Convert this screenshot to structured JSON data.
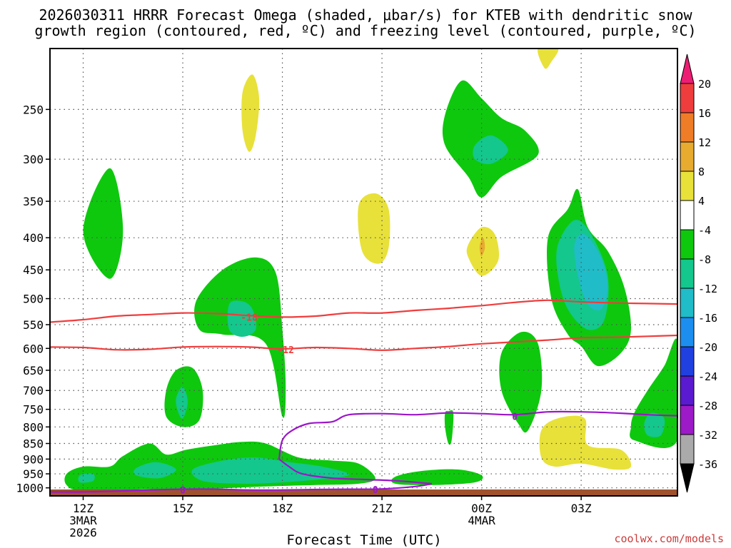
{
  "chart_data": {
    "type": "heatmap",
    "title_lines": [
      "2026030311 HRRR Forecast Omega (shaded, μbar/s) for KTEB with dendritic snow",
      "growth region (contoured, red, ºC) and freezing level (contoured, purple, ºC)"
    ],
    "xlabel": "Forecast Time (UTC)",
    "credit": "coolwx.com/models",
    "x_ticks": [
      {
        "hour": 12,
        "lines": [
          "12Z",
          "3MAR",
          "2026"
        ]
      },
      {
        "hour": 15,
        "lines": [
          "15Z"
        ]
      },
      {
        "hour": 18,
        "lines": [
          "18Z"
        ]
      },
      {
        "hour": 21,
        "lines": [
          "21Z"
        ]
      },
      {
        "hour": 24,
        "lines": [
          "00Z",
          "4MAR"
        ]
      },
      {
        "hour": 27,
        "lines": [
          "03Z"
        ]
      }
    ],
    "x_range_hours": [
      11,
      29.9
    ],
    "y_levels": [
      "250",
      "300",
      "350",
      "400",
      "450",
      "500",
      "550",
      "600",
      "650",
      "700",
      "750",
      "800",
      "850",
      "900",
      "950",
      "1000"
    ],
    "y_range_mb": [
      200,
      1030
    ],
    "y_scale": "log-pressure",
    "grid": true,
    "colorbar": {
      "labels": [
        "20",
        "16",
        "12",
        "8",
        "4",
        "-4",
        "-8",
        "-12",
        "-16",
        "-20",
        "-24",
        "-28",
        "-32",
        "-36"
      ],
      "colors": [
        "#ee1d74",
        "#ef3d3d",
        "#ef7d28",
        "#e7ab30",
        "#e8e13a",
        "#ffffff",
        "#0ec80e",
        "#14c78c",
        "#20bcc8",
        "#1c8ef0",
        "#2040e0",
        "#5a1ad0",
        "#9c1ac8",
        "#aaaaaa",
        "#000000"
      ]
    },
    "omega_regions": [
      {
        "level": "-4",
        "points": [
          [
            12.0,
            390
          ],
          [
            12.8,
            310
          ],
          [
            13.2,
            390
          ],
          [
            12.8,
            465
          ]
        ]
      },
      {
        "level": "-4",
        "points": [
          [
            15.4,
            505
          ],
          [
            16.2,
            450
          ],
          [
            17.2,
            430
          ],
          [
            17.8,
            455
          ],
          [
            18.0,
            560
          ],
          [
            18.1,
            690
          ],
          [
            18.0,
            770
          ],
          [
            17.5,
            590
          ],
          [
            16.2,
            570
          ],
          [
            15.5,
            560
          ]
        ]
      },
      {
        "level": "-4",
        "points": [
          [
            14.5,
            700
          ],
          [
            14.8,
            650
          ],
          [
            15.3,
            645
          ],
          [
            15.6,
            700
          ],
          [
            15.5,
            780
          ],
          [
            15.0,
            800
          ],
          [
            14.5,
            770
          ]
        ]
      },
      {
        "level": "-4",
        "points": [
          [
            11.5,
            950
          ],
          [
            12.0,
            925
          ],
          [
            12.8,
            925
          ],
          [
            13.2,
            890
          ],
          [
            14.0,
            850
          ],
          [
            14.5,
            885
          ],
          [
            15.1,
            870
          ],
          [
            16.0,
            855
          ],
          [
            16.8,
            845
          ],
          [
            17.5,
            850
          ],
          [
            18.5,
            895
          ],
          [
            19.5,
            905
          ],
          [
            20.3,
            915
          ],
          [
            20.8,
            965
          ],
          [
            20.3,
            985
          ],
          [
            19.0,
            990
          ],
          [
            17.5,
            995
          ],
          [
            15.5,
            1005
          ],
          [
            14.0,
            1005
          ],
          [
            12.0,
            1010
          ],
          [
            11.5,
            990
          ]
        ]
      },
      {
        "level": "-4",
        "points": [
          [
            21.4,
            960
          ],
          [
            22.2,
            940
          ],
          [
            23.3,
            935
          ],
          [
            24.0,
            955
          ],
          [
            23.8,
            980
          ],
          [
            22.5,
            990
          ],
          [
            21.4,
            985
          ]
        ]
      },
      {
        "level": "-4",
        "points": [
          [
            22.9,
            760
          ],
          [
            23.0,
            755
          ],
          [
            23.15,
            760
          ],
          [
            23.1,
            840
          ],
          [
            23.0,
            850
          ],
          [
            22.9,
            800
          ]
        ]
      },
      {
        "level": "-4",
        "points": [
          [
            22.9,
            255
          ],
          [
            23.4,
            225
          ],
          [
            24.0,
            240
          ],
          [
            24.6,
            258
          ],
          [
            25.3,
            270
          ],
          [
            25.7,
            295
          ],
          [
            24.6,
            320
          ],
          [
            24.0,
            345
          ],
          [
            23.6,
            320
          ],
          [
            22.9,
            285
          ]
        ]
      },
      {
        "level": "-4",
        "points": [
          [
            24.6,
            610
          ],
          [
            25.2,
            565
          ],
          [
            25.7,
            590
          ],
          [
            25.8,
            700
          ],
          [
            25.4,
            810
          ],
          [
            25.1,
            790
          ],
          [
            24.6,
            700
          ]
        ]
      },
      {
        "level": "-4",
        "points": [
          [
            26.0,
            400
          ],
          [
            26.6,
            360
          ],
          [
            26.9,
            335
          ],
          [
            27.2,
            385
          ],
          [
            27.8,
            420
          ],
          [
            28.3,
            480
          ],
          [
            28.5,
            560
          ],
          [
            28.2,
            610
          ],
          [
            27.5,
            640
          ],
          [
            27.0,
            595
          ],
          [
            26.6,
            570
          ],
          [
            26.1,
            500
          ]
        ]
      },
      {
        "level": "-4",
        "points": [
          [
            28.6,
            760
          ],
          [
            29.0,
            700
          ],
          [
            29.5,
            640
          ],
          [
            29.9,
            585
          ],
          [
            29.9,
            840
          ],
          [
            28.6,
            840
          ],
          [
            28.5,
            800
          ]
        ]
      },
      {
        "level": "-8",
        "points": [
          [
            16.4,
            510
          ],
          [
            16.8,
            505
          ],
          [
            17.1,
            520
          ],
          [
            17.2,
            560
          ],
          [
            16.8,
            575
          ],
          [
            16.4,
            560
          ]
        ]
      },
      {
        "level": "-8",
        "points": [
          [
            14.8,
            720
          ],
          [
            15.0,
            690
          ],
          [
            15.15,
            730
          ],
          [
            15.0,
            775
          ],
          [
            14.85,
            755
          ]
        ]
      },
      {
        "level": "-8",
        "points": [
          [
            13.6,
            930
          ],
          [
            14.2,
            910
          ],
          [
            14.8,
            935
          ],
          [
            14.3,
            965
          ],
          [
            13.6,
            955
          ]
        ]
      },
      {
        "level": "-8",
        "points": [
          [
            15.3,
            935
          ],
          [
            16.2,
            905
          ],
          [
            17.2,
            895
          ],
          [
            18.2,
            910
          ],
          [
            19.2,
            925
          ],
          [
            20.0,
            950
          ],
          [
            19.5,
            965
          ],
          [
            18.0,
            980
          ],
          [
            16.8,
            985
          ],
          [
            15.6,
            975
          ]
        ]
      },
      {
        "level": "-8",
        "points": [
          [
            11.9,
            955
          ],
          [
            12.3,
            950
          ],
          [
            12.3,
            975
          ],
          [
            11.9,
            980
          ]
        ]
      },
      {
        "level": "-8",
        "points": [
          [
            23.8,
            285
          ],
          [
            24.3,
            275
          ],
          [
            24.8,
            290
          ],
          [
            24.3,
            305
          ],
          [
            23.8,
            300
          ]
        ]
      },
      {
        "level": "-8",
        "points": [
          [
            26.3,
            410
          ],
          [
            26.8,
            375
          ],
          [
            27.3,
            395
          ],
          [
            27.8,
            460
          ],
          [
            27.7,
            540
          ],
          [
            27.2,
            560
          ],
          [
            26.6,
            520
          ],
          [
            26.3,
            460
          ]
        ]
      },
      {
        "level": "-8",
        "points": [
          [
            28.9,
            790
          ],
          [
            29.1,
            760
          ],
          [
            29.5,
            775
          ],
          [
            29.4,
            825
          ],
          [
            29.0,
            825
          ]
        ]
      },
      {
        "level": "-12",
        "points": [
          [
            26.8,
            410
          ],
          [
            27.1,
            395
          ],
          [
            27.6,
            430
          ],
          [
            27.8,
            480
          ],
          [
            27.6,
            520
          ],
          [
            27.2,
            510
          ],
          [
            26.9,
            460
          ]
        ]
      },
      {
        "level": "4",
        "points": [
          [
            16.8,
            235
          ],
          [
            17.1,
            220
          ],
          [
            17.3,
            240
          ],
          [
            17.2,
            275
          ],
          [
            17.0,
            292
          ],
          [
            16.8,
            270
          ]
        ]
      },
      {
        "level": "4",
        "points": [
          [
            20.3,
            355
          ],
          [
            20.8,
            340
          ],
          [
            21.2,
            360
          ],
          [
            21.2,
            415
          ],
          [
            20.9,
            440
          ],
          [
            20.4,
            420
          ]
        ]
      },
      {
        "level": "4",
        "points": [
          [
            23.6,
            410
          ],
          [
            24.0,
            385
          ],
          [
            24.4,
            395
          ],
          [
            24.5,
            435
          ],
          [
            24.0,
            460
          ],
          [
            23.6,
            430
          ]
        ]
      },
      {
        "level": "4",
        "points": [
          [
            25.7,
            200
          ],
          [
            26.3,
            200
          ],
          [
            26.1,
            210
          ],
          [
            25.9,
            215
          ]
        ]
      },
      {
        "level": "4",
        "points": [
          [
            25.8,
            810
          ],
          [
            26.3,
            775
          ],
          [
            27.1,
            775
          ],
          [
            27.2,
            855
          ],
          [
            28.2,
            870
          ],
          [
            28.5,
            925
          ],
          [
            28.0,
            935
          ],
          [
            27.0,
            915
          ],
          [
            26.2,
            925
          ],
          [
            25.8,
            895
          ]
        ]
      },
      {
        "level": "8",
        "points": [
          [
            23.95,
            410
          ],
          [
            24.05,
            400
          ],
          [
            24.1,
            415
          ],
          [
            24.0,
            428
          ],
          [
            23.95,
            420
          ]
        ]
      }
    ],
    "dgz_contours": [
      {
        "label": "-18",
        "label_at": [
          17.0,
          535
        ],
        "points": [
          [
            11.0,
            545
          ],
          [
            12,
            540
          ],
          [
            13,
            533
          ],
          [
            14,
            530
          ],
          [
            15,
            527
          ],
          [
            16,
            528
          ],
          [
            17,
            532
          ],
          [
            18,
            535
          ],
          [
            19,
            533
          ],
          [
            20,
            527
          ],
          [
            21,
            527
          ],
          [
            22,
            522
          ],
          [
            23,
            518
          ],
          [
            24,
            513
          ],
          [
            25,
            507
          ],
          [
            26,
            503
          ],
          [
            27,
            506
          ],
          [
            28,
            508
          ],
          [
            29,
            509
          ],
          [
            29.9,
            510
          ]
        ]
      },
      {
        "label": "-12",
        "label_at": [
          18.1,
          603
        ],
        "points": [
          [
            11.0,
            597
          ],
          [
            12,
            598
          ],
          [
            13,
            603
          ],
          [
            14,
            602
          ],
          [
            15,
            597
          ],
          [
            16,
            596
          ],
          [
            17,
            597
          ],
          [
            18,
            601
          ],
          [
            19,
            598
          ],
          [
            20,
            600
          ],
          [
            21,
            604
          ],
          [
            22,
            600
          ],
          [
            23,
            596
          ],
          [
            24,
            590
          ],
          [
            25,
            586
          ],
          [
            26,
            582
          ],
          [
            27,
            577
          ],
          [
            28,
            576
          ],
          [
            29,
            574
          ],
          [
            29.9,
            572
          ]
        ]
      }
    ],
    "freezing_contours": [
      {
        "label": "0",
        "label_at": [
          25.0,
          770
        ],
        "points": [
          [
            17.9,
            900
          ],
          [
            18.0,
            840
          ],
          [
            18.3,
            810
          ],
          [
            18.8,
            790
          ],
          [
            19.5,
            785
          ],
          [
            20,
            765
          ],
          [
            21,
            762
          ],
          [
            22,
            765
          ],
          [
            23,
            760
          ],
          [
            24,
            762
          ],
          [
            25,
            765
          ],
          [
            26,
            757
          ],
          [
            27,
            757
          ],
          [
            28,
            760
          ],
          [
            29,
            765
          ],
          [
            29.9,
            768
          ]
        ]
      },
      {
        "label": "0",
        "label_at": [
          15.0,
          1007
        ],
        "points": [
          [
            11.0,
            1015
          ],
          [
            12,
            1015
          ],
          [
            13,
            1012
          ],
          [
            14,
            1008
          ],
          [
            15,
            1005
          ],
          [
            16,
            1005
          ],
          [
            17,
            1008
          ],
          [
            18,
            1008
          ],
          [
            19,
            1006
          ],
          [
            20,
            1005
          ],
          [
            21,
            1004
          ],
          [
            22,
            995
          ],
          [
            22.5,
            985
          ]
        ]
      },
      {
        "label": "0",
        "label_at": [
          20.8,
          1006
        ],
        "points": [
          [
            17.9,
            900
          ],
          [
            18.2,
            925
          ],
          [
            18.6,
            950
          ],
          [
            19.5,
            965
          ],
          [
            20.5,
            970
          ],
          [
            21.5,
            975
          ],
          [
            22.5,
            985
          ]
        ]
      }
    ],
    "surface_color": "#a0522d"
  }
}
